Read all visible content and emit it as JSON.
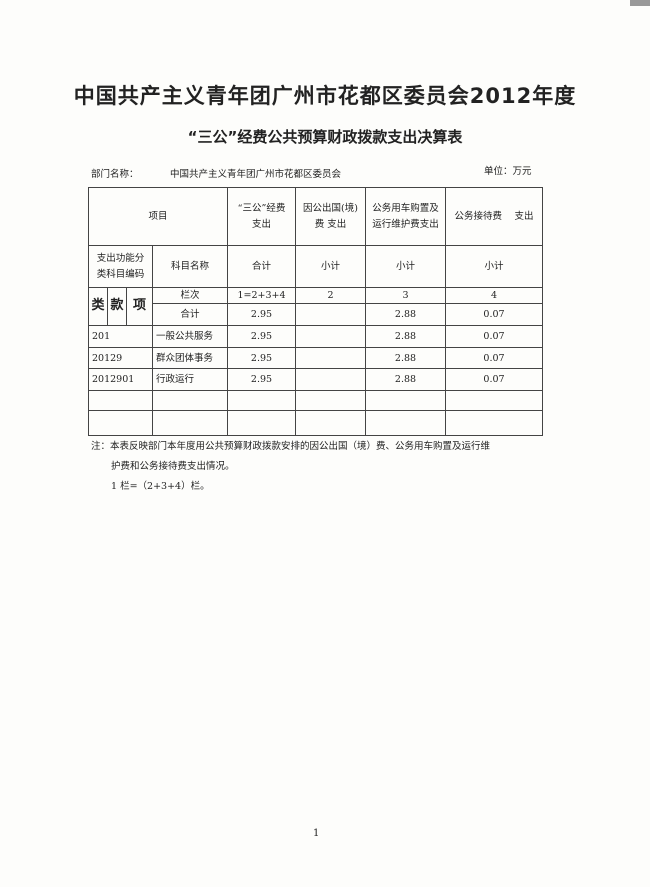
{
  "title": "中国共产主义青年团广州市花都区委员会2012年度",
  "subtitle": "“三公”经费公共预算财政拨款支出决算表",
  "dept_label": "部门名称：",
  "dept_value": "中国共产主义青年团广州市花都区委员会",
  "unit": "单位：万元",
  "table": {
    "header1": {
      "item": "项目",
      "col1": [
        "“三公”经费",
        "支出"
      ],
      "col2": [
        "因公出国(境)",
        "费 支出"
      ],
      "col3": [
        "公务用车购置及",
        "运行维护费支出"
      ],
      "col4": "公务接待费　 支出"
    },
    "header2": {
      "code": [
        "支出功能分",
        "类科目编码"
      ],
      "name": "科目名称",
      "col1": "合计",
      "col2": "小计",
      "col3": "小计",
      "col4": "小计"
    },
    "lei": "类",
    "kuan": "款",
    "xiang": "项",
    "lanci": {
      "name": "栏次",
      "col1": "1=2+3+4",
      "col2": "2",
      "col3": "3",
      "col4": "4"
    },
    "total": {
      "name": "合计",
      "col1": "2.95",
      "col2": "",
      "col3": "2.88",
      "col4": "0.07"
    },
    "rows": [
      {
        "code": "201",
        "name": "一般公共服务",
        "col1": "2.95",
        "col2": "",
        "col3": "2.88",
        "col4": "0.07"
      },
      {
        "code": "20129",
        "name": "群众团体事务",
        "col1": "2.95",
        "col2": "",
        "col3": "2.88",
        "col4": "0.07"
      },
      {
        "code": "2012901",
        "name": "行政运行",
        "col1": "2.95",
        "col2": "",
        "col3": "2.88",
        "col4": "0.07"
      }
    ]
  },
  "note": {
    "line1": "注：本表反映部门本年度用公共预算财政拨款安排的因公出国（境）费、公务用车购置及运行维",
    "line2": "护费和公务接待费支出情况。",
    "line3": "1 栏=（2+3+4）栏。"
  },
  "page_number": "1"
}
